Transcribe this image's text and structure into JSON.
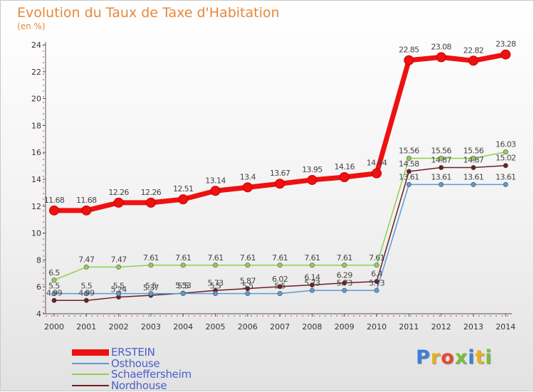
{
  "title": "Evolution du Taux de Taxe d'Habitation",
  "unit_label": "(en %)",
  "logo": {
    "letters": [
      {
        "ch": "P",
        "color": "#3e7fd6"
      },
      {
        "ch": "r",
        "color": "#e8b020"
      },
      {
        "ch": "o",
        "color": "#e64a2e"
      },
      {
        "ch": "x",
        "color": "#7bbd3a"
      },
      {
        "ch": "i",
        "color": "#3e7fd6"
      },
      {
        "ch": "t",
        "color": "#e8b020"
      },
      {
        "ch": "i",
        "color": "#7bbd3a"
      }
    ]
  },
  "chart_data": {
    "type": "line",
    "title": "Evolution du Taux de Taxe d'Habitation",
    "ylabel": "(en %)",
    "xlabel": "",
    "x": [
      "2000",
      "2001",
      "2002",
      "2003",
      "2004",
      "2005",
      "2006",
      "2007",
      "2008",
      "2009",
      "2010",
      "2011",
      "2012",
      "2013",
      "2014"
    ],
    "ylim": [
      4,
      24
    ],
    "yticks": [
      4,
      6,
      8,
      10,
      12,
      14,
      16,
      18,
      20,
      22,
      24
    ],
    "grid": false,
    "legend_position": "bottom-left",
    "series": [
      {
        "name": "ERSTEIN",
        "color": "#ee1111",
        "values": [
          11.68,
          11.68,
          12.26,
          12.26,
          12.51,
          13.14,
          13.4,
          13.67,
          13.95,
          14.16,
          14.44,
          22.85,
          23.08,
          22.82,
          23.28
        ],
        "labels": [
          "11.68",
          "11.68",
          "12.26",
          "12.26",
          "12.51",
          "13.14",
          "13.4",
          "13.67",
          "13.95",
          "14.16",
          "14.44",
          "22.85",
          "23.08",
          "22.82",
          "23.28"
        ]
      },
      {
        "name": "Osthouse",
        "color": "#5b9bd5",
        "values": [
          5.5,
          5.5,
          5.5,
          5.5,
          5.5,
          5.5,
          5.5,
          5.5,
          5.73,
          5.73,
          5.73,
          13.61,
          13.61,
          13.61,
          13.61
        ],
        "labels": [
          "5.5",
          "5.5",
          "5.5",
          "5.5",
          "5.5",
          "5.5",
          "5.5",
          "5.5",
          "5.73",
          "5.73",
          "5.73",
          "13.61",
          "13.61",
          "13.61",
          "13.61"
        ]
      },
      {
        "name": "Schaeffersheim",
        "color": "#8fd14f",
        "values": [
          6.5,
          7.47,
          7.47,
          7.61,
          7.61,
          7.61,
          7.61,
          7.61,
          7.61,
          7.61,
          7.61,
          15.56,
          15.56,
          15.56,
          16.03
        ],
        "labels": [
          "6.5",
          "7.47",
          "7.47",
          "7.61",
          "7.61",
          "7.61",
          "7.61",
          "7.61",
          "7.61",
          "7.61",
          "7.61",
          "15.56",
          "15.56",
          "15.56",
          "16.03"
        ]
      },
      {
        "name": "Nordhouse",
        "color": "#6b1f24",
        "values": [
          4.99,
          4.99,
          5.24,
          5.37,
          5.53,
          5.73,
          5.87,
          6.02,
          6.14,
          6.29,
          6.4,
          14.58,
          14.87,
          14.87,
          15.02
        ],
        "labels": [
          "4.99",
          "4.99",
          "5.24",
          "5.37",
          "5.53",
          "5.73",
          "5.87",
          "6.02",
          "6.14",
          "6.29",
          "6.4",
          "14.58",
          "14.87",
          "14.87",
          "15.02"
        ]
      }
    ]
  }
}
